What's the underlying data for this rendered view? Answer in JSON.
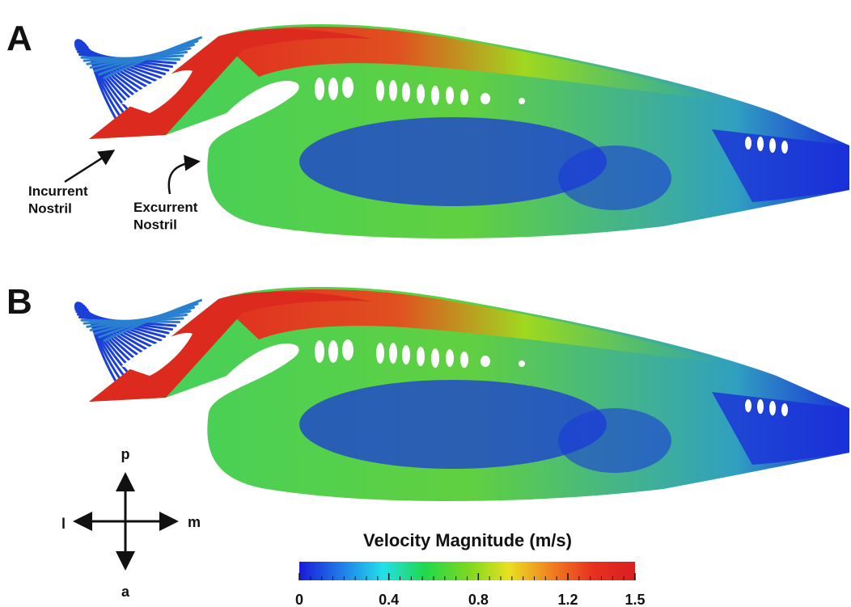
{
  "panels": [
    {
      "label": "A",
      "annotations": [
        "Incurrent\nNostril",
        "Excurrent\nNostril"
      ]
    },
    {
      "label": "B"
    }
  ],
  "compass": {
    "up": "p",
    "right": "m",
    "down": "a",
    "left": "l"
  },
  "colorbar": {
    "title": "Velocity Magnitude (m/s)",
    "lim": [
      0,
      1.5
    ],
    "ticks": [
      0,
      0.4,
      0.8,
      1.2,
      1.5
    ],
    "colors": [
      "#1a1ad8",
      "#1f7de8",
      "#22e0e8",
      "#22d84a",
      "#7ad820",
      "#e8e020",
      "#f08020",
      "#e83020",
      "#d82020"
    ]
  }
}
